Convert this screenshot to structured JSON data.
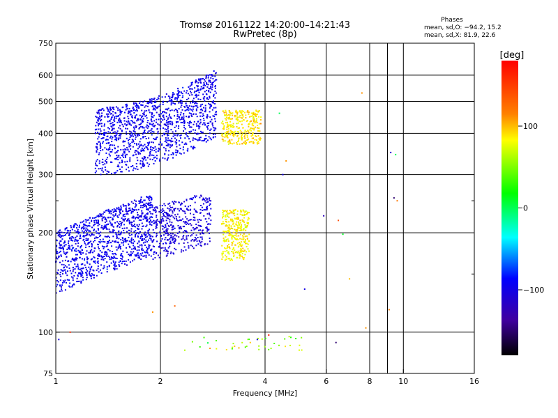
{
  "chart_data": {
    "type": "scatter",
    "title": "Tromsø 20161122 14:20:00–14:21:43",
    "subtitle": "RwPretec (8p)",
    "xlabel": "Frequency [MHz]",
    "ylabel": "Stationary phase Virtual Height [km]",
    "x_scale": "log2",
    "y_scale": "log",
    "xlim": [
      1,
      16
    ],
    "ylim": [
      75,
      750
    ],
    "x_ticks": [
      1,
      2,
      4,
      6,
      8,
      10,
      16
    ],
    "x_tick_labels": [
      "1",
      "2",
      "4",
      "6",
      "8",
      "10",
      "16"
    ],
    "x_minor_ticks": [
      9
    ],
    "y_ticks": [
      75,
      100,
      200,
      300,
      400,
      500,
      600,
      750
    ],
    "y_tick_labels": [
      "75",
      "100",
      "200",
      "300",
      "400",
      "500",
      "600",
      "750"
    ],
    "y_minor_ticks": [
      150,
      250
    ],
    "grid": true,
    "stats": {
      "title": "Phases",
      "line1": "mean, sd,O: −94.2, 15.2",
      "line2": "mean, sd,X:  81.9, 22.6"
    },
    "colorbar": {
      "label": "[deg]",
      "range": [
        -180,
        180
      ],
      "ticks": [
        100,
        0,
        -100
      ],
      "tick_labels": [
        "100",
        "0",
        "−100"
      ],
      "colors": [
        "#ff0000",
        "#ff8000",
        "#ffff00",
        "#00ff00",
        "#00ffff",
        "#0000ff",
        "#4000a0",
        "#000000"
      ]
    },
    "clusters": [
      {
        "name": "O lower trace",
        "x": [
          1.0,
          1.9
        ],
        "y": [
          130,
          260
        ],
        "phase": -95
      },
      {
        "name": "O lower trace upper branch",
        "x": [
          1.9,
          2.8
        ],
        "y": [
          165,
          260
        ],
        "phase": -105
      },
      {
        "name": "X lower trace",
        "x": [
          3.0,
          3.6
        ],
        "y": [
          165,
          235
        ],
        "phase": 85
      },
      {
        "name": "O upper trace",
        "x": [
          1.3,
          2.9
        ],
        "y": [
          300,
          650
        ],
        "phase": -95
      },
      {
        "name": "X upper trace",
        "x": [
          3.0,
          3.9
        ],
        "y": [
          370,
          470
        ],
        "phase": 90
      },
      {
        "name": "low echoes",
        "x": [
          2.3,
          5.2
        ],
        "y": [
          88,
          97
        ],
        "phase": 60
      }
    ],
    "scattered_points": [
      {
        "x": 9.2,
        "y": 350,
        "phase": -110
      },
      {
        "x": 9.5,
        "y": 345,
        "phase": 0
      },
      {
        "x": 9.4,
        "y": 255,
        "phase": -150
      },
      {
        "x": 9.6,
        "y": 250,
        "phase": 120
      },
      {
        "x": 6.5,
        "y": 218,
        "phase": 140
      },
      {
        "x": 6.7,
        "y": 198,
        "phase": 10
      },
      {
        "x": 4.5,
        "y": 300,
        "phase": -100
      },
      {
        "x": 4.6,
        "y": 330,
        "phase": 110
      },
      {
        "x": 5.9,
        "y": 225,
        "phase": -120
      },
      {
        "x": 7.0,
        "y": 145,
        "phase": 100
      },
      {
        "x": 9.1,
        "y": 117,
        "phase": 120
      },
      {
        "x": 5.2,
        "y": 135,
        "phase": -100
      },
      {
        "x": 6.4,
        "y": 93,
        "phase": -150
      },
      {
        "x": 7.8,
        "y": 103,
        "phase": 110
      },
      {
        "x": 4.1,
        "y": 98,
        "phase": 170
      },
      {
        "x": 3.8,
        "y": 95,
        "phase": -100
      },
      {
        "x": 7.6,
        "y": 530,
        "phase": 110
      },
      {
        "x": 4.4,
        "y": 460,
        "phase": 0
      },
      {
        "x": 1.3,
        "y": 400,
        "phase": -100
      },
      {
        "x": 1.9,
        "y": 115,
        "phase": 110
      },
      {
        "x": 2.2,
        "y": 120,
        "phase": 130
      },
      {
        "x": 1.1,
        "y": 100,
        "phase": 160
      },
      {
        "x": 1.02,
        "y": 95,
        "phase": -100
      }
    ]
  }
}
